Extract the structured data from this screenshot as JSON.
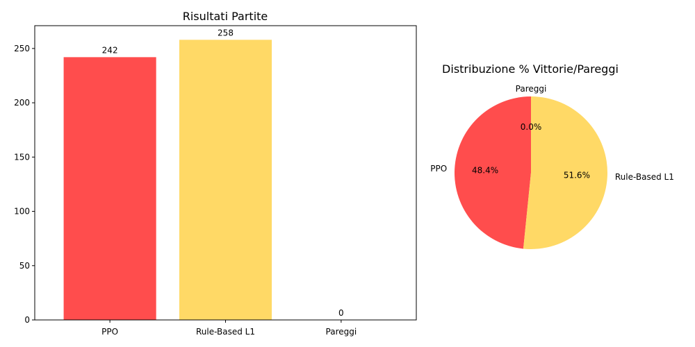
{
  "chart_data": [
    {
      "type": "bar",
      "title": "Risultati Partite",
      "xlabel": "",
      "ylabel": "",
      "categories": [
        "PPO",
        "Rule-Based L1",
        "Pareggi"
      ],
      "values": [
        242,
        258,
        0
      ],
      "data_labels": [
        "242",
        "258",
        "0"
      ],
      "colors": [
        "#ff4d4d",
        "#ffd966",
        "#999999"
      ],
      "ylim": [
        0,
        271
      ],
      "yticks": [
        0,
        50,
        100,
        150,
        200,
        250
      ],
      "grid": false
    },
    {
      "type": "pie",
      "title": "Distribuzione % Vittorie/Pareggi",
      "labels": [
        "PPO",
        "Rule-Based L1",
        "Pareggi"
      ],
      "values": [
        242,
        258,
        0
      ],
      "percent_labels": [
        "48.4%",
        "51.6%",
        "0.0%"
      ],
      "colors": [
        "#ff4d4d",
        "#ffd966",
        "#999999"
      ],
      "start_angle": 90,
      "direction": "counterclockwise"
    }
  ]
}
